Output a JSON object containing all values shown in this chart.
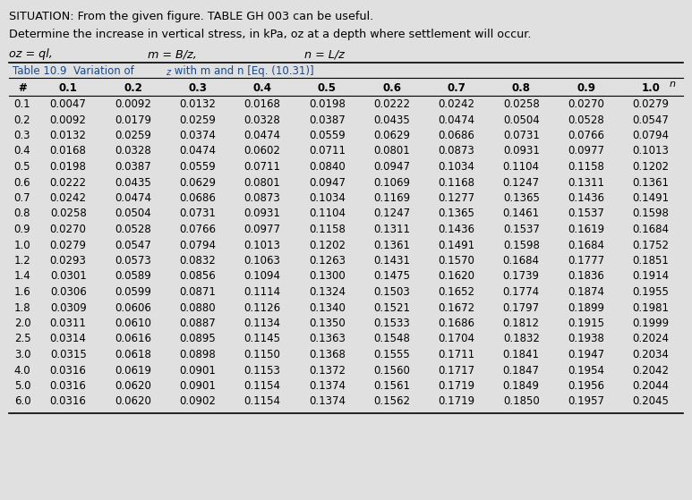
{
  "title_line1": "SITUATION: From the given figure. TABLE GH 003 can be useful.",
  "title_line2": "Determine the increase in vertical stress, in kPa, oz at a depth where settlement will occur.",
  "formula_left": "oz = ql,",
  "formula_mid": "m = B/z,",
  "formula_right": "n = L/z",
  "table_title": "Table 10.9  Variation of I",
  "table_title_sub": "z",
  "table_title_rest": " with m and n [Eq. (10.31)]",
  "col_header_label": "n",
  "row_header_label": "#",
  "col_headers": [
    "0.1",
    "0.2",
    "0.3",
    "0.4",
    "0.5",
    "0.6",
    "0.7",
    "0.8",
    "0.9",
    "1.0"
  ],
  "row_headers": [
    "0.1",
    "0.2",
    "0.3",
    "0.4",
    "0.5",
    "0.6",
    "0.7",
    "0.8",
    "0.9",
    "1.0",
    "1.2",
    "1.4",
    "1.6",
    "1.8",
    "2.0",
    "2.5",
    "3.0",
    "4.0",
    "5.0",
    "6.0"
  ],
  "table_data": [
    [
      0.0047,
      0.0092,
      0.0132,
      0.0168,
      0.0198,
      0.0222,
      0.0242,
      0.0258,
      0.027,
      0.0279
    ],
    [
      0.0092,
      0.0179,
      0.0259,
      0.0328,
      0.0387,
      0.0435,
      0.0474,
      0.0504,
      0.0528,
      0.0547
    ],
    [
      0.0132,
      0.0259,
      0.0374,
      0.0474,
      0.0559,
      0.0629,
      0.0686,
      0.0731,
      0.0766,
      0.0794
    ],
    [
      0.0168,
      0.0328,
      0.0474,
      0.0602,
      0.0711,
      0.0801,
      0.0873,
      0.0931,
      0.0977,
      0.1013
    ],
    [
      0.0198,
      0.0387,
      0.0559,
      0.0711,
      0.084,
      0.0947,
      0.1034,
      0.1104,
      0.1158,
      0.1202
    ],
    [
      0.0222,
      0.0435,
      0.0629,
      0.0801,
      0.0947,
      0.1069,
      0.1168,
      0.1247,
      0.1311,
      0.1361
    ],
    [
      0.0242,
      0.0474,
      0.0686,
      0.0873,
      0.1034,
      0.1169,
      0.1277,
      0.1365,
      0.1436,
      0.1491
    ],
    [
      0.0258,
      0.0504,
      0.0731,
      0.0931,
      0.1104,
      0.1247,
      0.1365,
      0.1461,
      0.1537,
      0.1598
    ],
    [
      0.027,
      0.0528,
      0.0766,
      0.0977,
      0.1158,
      0.1311,
      0.1436,
      0.1537,
      0.1619,
      0.1684
    ],
    [
      0.0279,
      0.0547,
      0.0794,
      0.1013,
      0.1202,
      0.1361,
      0.1491,
      0.1598,
      0.1684,
      0.1752
    ],
    [
      0.0293,
      0.0573,
      0.0832,
      0.1063,
      0.1263,
      0.1431,
      0.157,
      0.1684,
      0.1777,
      0.1851
    ],
    [
      0.0301,
      0.0589,
      0.0856,
      0.1094,
      0.13,
      0.1475,
      0.162,
      0.1739,
      0.1836,
      0.1914
    ],
    [
      0.0306,
      0.0599,
      0.0871,
      0.1114,
      0.1324,
      0.1503,
      0.1652,
      0.1774,
      0.1874,
      0.1955
    ],
    [
      0.0309,
      0.0606,
      0.088,
      0.1126,
      0.134,
      0.1521,
      0.1672,
      0.1797,
      0.1899,
      0.1981
    ],
    [
      0.0311,
      0.061,
      0.0887,
      0.1134,
      0.135,
      0.1533,
      0.1686,
      0.1812,
      0.1915,
      0.1999
    ],
    [
      0.0314,
      0.0616,
      0.0895,
      0.1145,
      0.1363,
      0.1548,
      0.1704,
      0.1832,
      0.1938,
      0.2024
    ],
    [
      0.0315,
      0.0618,
      0.0898,
      0.115,
      0.1368,
      0.1555,
      0.1711,
      0.1841,
      0.1947,
      0.2034
    ],
    [
      0.0316,
      0.0619,
      0.0901,
      0.1153,
      0.1372,
      0.156,
      0.1717,
      0.1847,
      0.1954,
      0.2042
    ],
    [
      0.0316,
      0.062,
      0.0901,
      0.1154,
      0.1374,
      0.1561,
      0.1719,
      0.1849,
      0.1956,
      0.2044
    ],
    [
      0.0316,
      0.062,
      0.0902,
      0.1154,
      0.1374,
      0.1562,
      0.1719,
      0.185,
      0.1957,
      0.2045
    ]
  ],
  "bg_color": "#e0e0e0",
  "text_color": "#000000",
  "table_title_color": "#1a4a8a",
  "formula_italic": true
}
